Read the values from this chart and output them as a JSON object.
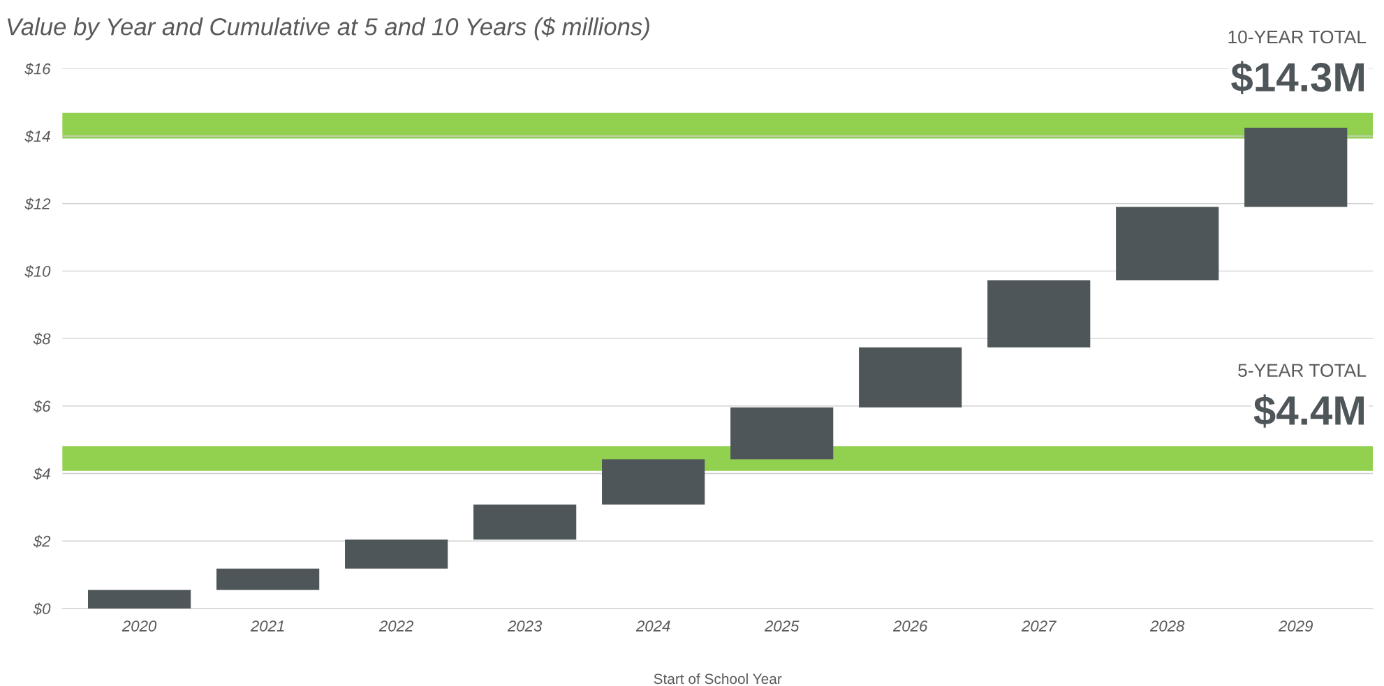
{
  "chart_data": {
    "type": "bar",
    "title": "Value by Year and Cumulative at 5 and 10 Years ($ millions)",
    "xlabel": "Start of School Year",
    "categories": [
      "2020",
      "2021",
      "2022",
      "2023",
      "2024",
      "2025",
      "2026",
      "2027",
      "2028",
      "2029"
    ],
    "values": [
      0.55,
      0.63,
      0.86,
      1.04,
      1.34,
      1.54,
      1.78,
      1.99,
      2.17,
      2.35
    ],
    "base": [
      0,
      0.55,
      1.18,
      2.04,
      3.08,
      4.42,
      5.96,
      7.74,
      9.73,
      11.9
    ],
    "color": "#4f5659",
    "ylim": [
      0,
      16
    ],
    "yticks": [
      {
        "value": 0,
        "label": "$0"
      },
      {
        "value": 2,
        "label": "$2"
      },
      {
        "value": 4,
        "label": "$4"
      },
      {
        "value": 6,
        "label": "$6"
      },
      {
        "value": 8,
        "label": "$8"
      },
      {
        "value": 10,
        "label": "$10"
      },
      {
        "value": 12,
        "label": "$12"
      },
      {
        "value": 14,
        "label": "$14"
      },
      {
        "value": 16,
        "label": "$16"
      }
    ],
    "grid": "y",
    "bands": [
      {
        "axis": "y",
        "from": 13.93,
        "to": 14.69,
        "color": "#92d050"
      },
      {
        "axis": "y",
        "from": 4.08,
        "to": 4.81,
        "color": "#92d050"
      }
    ],
    "annotations": [
      "10-YEAR TOTAL",
      "$14.3M",
      "5-YEAR TOTAL",
      "$4.4M"
    ]
  }
}
